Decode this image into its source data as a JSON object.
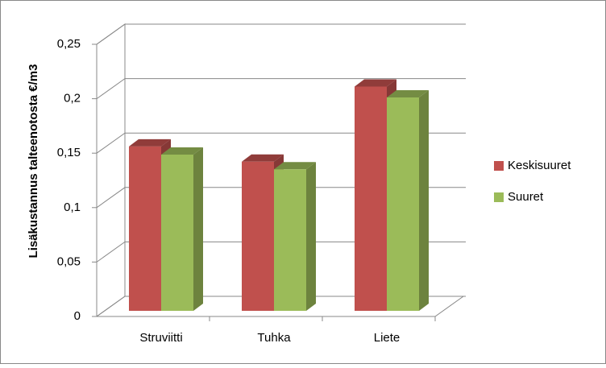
{
  "chart_data": {
    "type": "bar3d",
    "y_label": "Lisäkustannus talteenotosta  €/m3",
    "categories": [
      "Struviitti",
      "Tuhka",
      "Liete"
    ],
    "series": [
      {
        "name": "Keskisuuret",
        "color": "#c0504d",
        "values": [
          0.151,
          0.137,
          0.206
        ]
      },
      {
        "name": "Suuret",
        "color": "#9bbb59",
        "values": [
          0.1435,
          0.13,
          0.196
        ]
      }
    ],
    "ylim": [
      0,
      0.25
    ],
    "yticks": [
      0,
      {
        "value": 0.05,
        "label": "0,05"
      },
      {
        "value": 0.1,
        "label": "0,1"
      },
      {
        "value": 0.15,
        "label": "0,15"
      },
      {
        "value": 0.2,
        "label": "0,2"
      },
      {
        "value": 0.25,
        "label": "0,25"
      }
    ],
    "grid": true,
    "legend": "right"
  }
}
